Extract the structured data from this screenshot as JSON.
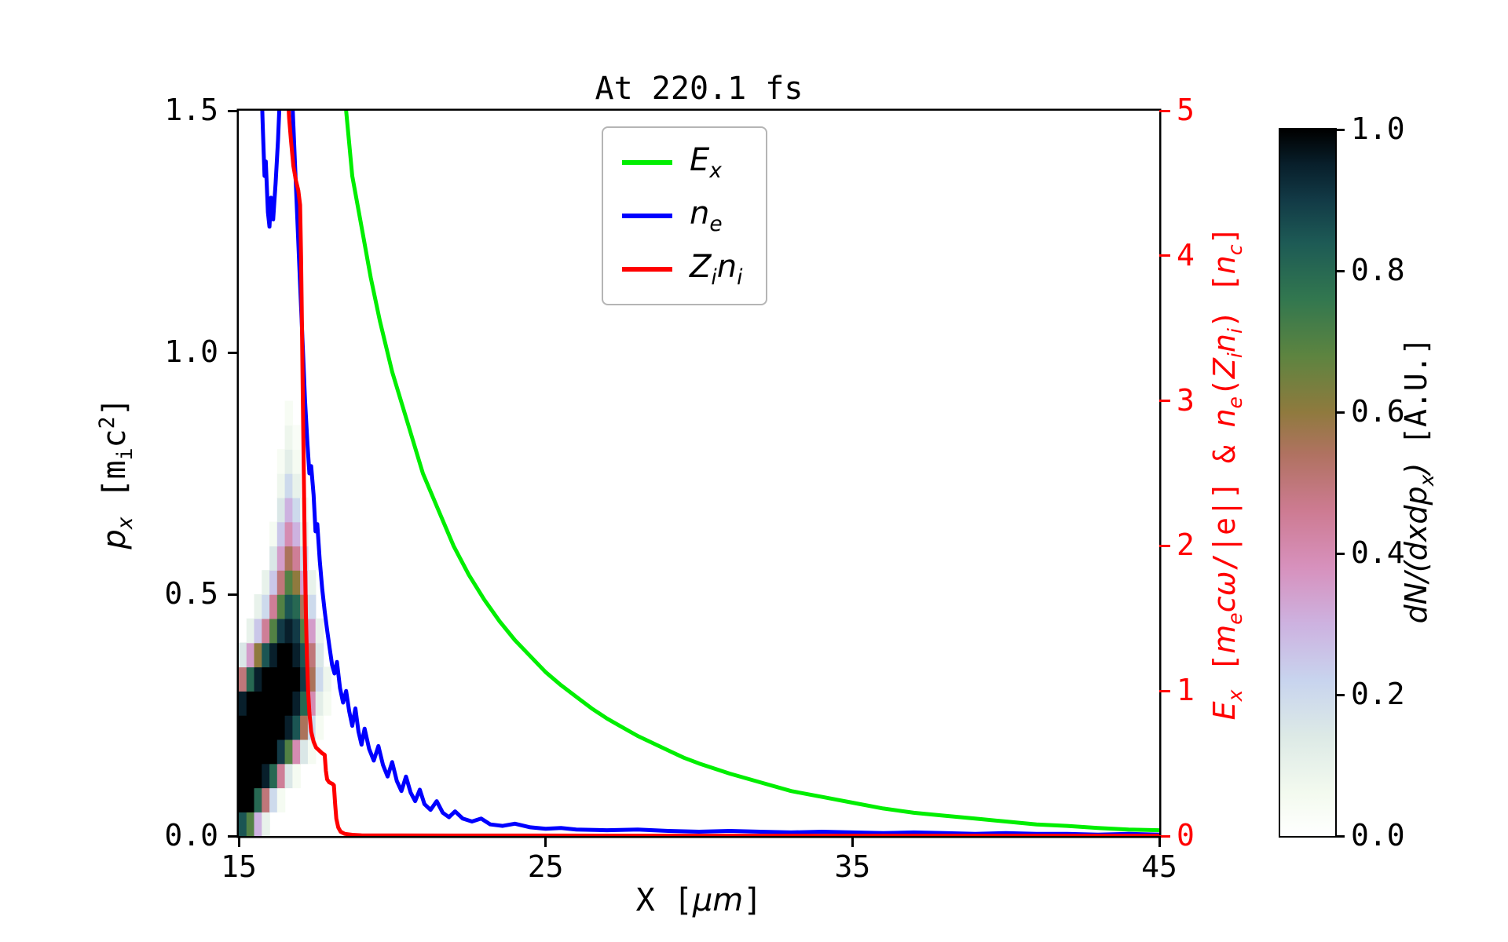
{
  "chart_data": {
    "type": "line+heatmap",
    "title": "At 220.1 fs",
    "xlabel_html": "X [<i>μm</i>]",
    "x_range": [
      15,
      45
    ],
    "x_tick_values": [
      15,
      25,
      35,
      45
    ],
    "x_tick_labels": [
      "15",
      "25",
      "35",
      "45"
    ],
    "left_axis": {
      "label_html": "<i>p<sub>x</sub></i> [m<sub>i</sub>c<sup>2</sup>]",
      "range": [
        0.0,
        1.5
      ],
      "tick_values": [
        0.0,
        0.5,
        1.0,
        1.5
      ],
      "tick_labels": [
        "0.0",
        "0.5",
        "1.0",
        "1.5"
      ],
      "color": "#000000"
    },
    "right_axis": {
      "label_html": "<i>E<sub>x</sub></i> [<i>m<sub>e</sub>cω</i>/|e|] &amp; <i>n<sub>e</sub></i>(<i>Z<sub>i</sub>n<sub>i</sub></i>) [<i>n<sub>c</sub></i>]",
      "range": [
        0,
        5
      ],
      "tick_values": [
        0,
        1,
        2,
        3,
        4,
        5
      ],
      "tick_labels": [
        "0",
        "1",
        "2",
        "3",
        "4",
        "5"
      ],
      "color": "#ff0000"
    },
    "series": [
      {
        "name": "E_x",
        "label_html": "<i>E<sub>x</sub></i>",
        "color": "#00ee00",
        "axis": "right",
        "points": [
          [
            18.35,
            5.6
          ],
          [
            18.5,
            5.0
          ],
          [
            18.7,
            4.55
          ],
          [
            19.0,
            4.2
          ],
          [
            19.3,
            3.85
          ],
          [
            19.6,
            3.55
          ],
          [
            20.0,
            3.2
          ],
          [
            20.5,
            2.85
          ],
          [
            21.0,
            2.5
          ],
          [
            21.5,
            2.25
          ],
          [
            22.0,
            2.0
          ],
          [
            22.5,
            1.8
          ],
          [
            23.0,
            1.63
          ],
          [
            23.5,
            1.48
          ],
          [
            24.0,
            1.35
          ],
          [
            24.5,
            1.24
          ],
          [
            25.0,
            1.13
          ],
          [
            25.5,
            1.04
          ],
          [
            26.0,
            0.96
          ],
          [
            26.5,
            0.88
          ],
          [
            27.0,
            0.81
          ],
          [
            27.5,
            0.75
          ],
          [
            28.0,
            0.69
          ],
          [
            28.5,
            0.64
          ],
          [
            29.0,
            0.59
          ],
          [
            29.5,
            0.54
          ],
          [
            30.0,
            0.5
          ],
          [
            31.0,
            0.43
          ],
          [
            32.0,
            0.37
          ],
          [
            33.0,
            0.31
          ],
          [
            34.0,
            0.27
          ],
          [
            35.0,
            0.23
          ],
          [
            36.0,
            0.19
          ],
          [
            37.0,
            0.16
          ],
          [
            38.0,
            0.14
          ],
          [
            39.0,
            0.12
          ],
          [
            40.0,
            0.1
          ],
          [
            41.0,
            0.08
          ],
          [
            42.0,
            0.07
          ],
          [
            43.0,
            0.055
          ],
          [
            44.0,
            0.045
          ],
          [
            45.0,
            0.04
          ]
        ]
      },
      {
        "name": "n_e",
        "label_html": "<i>n<sub>e</sub></i>",
        "color": "#0000ff",
        "axis": "right",
        "points": [
          [
            15.68,
            5.6
          ],
          [
            15.78,
            4.9
          ],
          [
            15.84,
            4.55
          ],
          [
            15.88,
            4.65
          ],
          [
            15.95,
            4.3
          ],
          [
            16.0,
            4.2
          ],
          [
            16.05,
            4.4
          ],
          [
            16.12,
            4.25
          ],
          [
            16.2,
            4.5
          ],
          [
            16.28,
            4.8
          ],
          [
            16.36,
            5.2
          ],
          [
            16.45,
            5.6
          ],
          [
            16.6,
            5.7
          ],
          [
            16.72,
            5.2
          ],
          [
            16.8,
            4.8
          ],
          [
            16.9,
            4.3
          ],
          [
            17.0,
            3.8
          ],
          [
            17.08,
            3.4
          ],
          [
            17.16,
            3.0
          ],
          [
            17.24,
            2.7
          ],
          [
            17.3,
            2.5
          ],
          [
            17.36,
            2.55
          ],
          [
            17.44,
            2.35
          ],
          [
            17.5,
            2.1
          ],
          [
            17.56,
            2.15
          ],
          [
            17.64,
            1.9
          ],
          [
            17.72,
            1.7
          ],
          [
            17.8,
            1.55
          ],
          [
            17.88,
            1.42
          ],
          [
            17.96,
            1.3
          ],
          [
            18.04,
            1.18
          ],
          [
            18.12,
            1.12
          ],
          [
            18.2,
            1.2
          ],
          [
            18.3,
            1.02
          ],
          [
            18.4,
            0.92
          ],
          [
            18.5,
            1.0
          ],
          [
            18.6,
            0.86
          ],
          [
            18.7,
            0.76
          ],
          [
            18.8,
            0.88
          ],
          [
            18.9,
            0.72
          ],
          [
            19.0,
            0.63
          ],
          [
            19.1,
            0.74
          ],
          [
            19.25,
            0.6
          ],
          [
            19.4,
            0.52
          ],
          [
            19.55,
            0.62
          ],
          [
            19.7,
            0.49
          ],
          [
            19.85,
            0.41
          ],
          [
            20.0,
            0.51
          ],
          [
            20.15,
            0.38
          ],
          [
            20.3,
            0.31
          ],
          [
            20.45,
            0.41
          ],
          [
            20.6,
            0.3
          ],
          [
            20.75,
            0.24
          ],
          [
            20.9,
            0.32
          ],
          [
            21.05,
            0.22
          ],
          [
            21.25,
            0.18
          ],
          [
            21.45,
            0.24
          ],
          [
            21.65,
            0.16
          ],
          [
            21.85,
            0.13
          ],
          [
            22.05,
            0.17
          ],
          [
            22.3,
            0.12
          ],
          [
            22.6,
            0.1
          ],
          [
            22.9,
            0.12
          ],
          [
            23.2,
            0.08
          ],
          [
            23.6,
            0.07
          ],
          [
            24.0,
            0.085
          ],
          [
            24.5,
            0.06
          ],
          [
            25.0,
            0.05
          ],
          [
            25.5,
            0.055
          ],
          [
            26.0,
            0.045
          ],
          [
            27.0,
            0.04
          ],
          [
            28.0,
            0.045
          ],
          [
            29.0,
            0.035
          ],
          [
            30.0,
            0.03
          ],
          [
            31.0,
            0.035
          ],
          [
            32.0,
            0.03
          ],
          [
            33.0,
            0.025
          ],
          [
            34.0,
            0.03
          ],
          [
            35.0,
            0.025
          ],
          [
            36.0,
            0.02
          ],
          [
            37.0,
            0.025
          ],
          [
            38.0,
            0.02
          ],
          [
            39.0,
            0.015
          ],
          [
            40.0,
            0.02
          ],
          [
            41.0,
            0.015
          ],
          [
            42.0,
            0.015
          ],
          [
            43.0,
            0.01
          ],
          [
            44.0,
            0.015
          ],
          [
            45.0,
            0.01
          ]
        ]
      },
      {
        "name": "Z_i n_i",
        "label_html": "<i>Z<sub>i</sub>n<sub>i</sub></i>",
        "color": "#ff0000",
        "axis": "right",
        "points": [
          [
            16.52,
            5.6
          ],
          [
            16.58,
            5.2
          ],
          [
            16.64,
            4.95
          ],
          [
            16.7,
            4.8
          ],
          [
            16.78,
            4.62
          ],
          [
            16.86,
            4.52
          ],
          [
            16.94,
            4.45
          ],
          [
            17.0,
            4.35
          ],
          [
            17.03,
            4.0
          ],
          [
            17.06,
            3.5
          ],
          [
            17.09,
            3.0
          ],
          [
            17.12,
            2.5
          ],
          [
            17.15,
            2.0
          ],
          [
            17.18,
            1.6
          ],
          [
            17.22,
            1.25
          ],
          [
            17.26,
            1.0
          ],
          [
            17.3,
            0.85
          ],
          [
            17.36,
            0.72
          ],
          [
            17.44,
            0.65
          ],
          [
            17.52,
            0.61
          ],
          [
            17.62,
            0.59
          ],
          [
            17.72,
            0.57
          ],
          [
            17.8,
            0.56
          ],
          [
            17.84,
            0.45
          ],
          [
            17.88,
            0.39
          ],
          [
            17.95,
            0.37
          ],
          [
            18.05,
            0.36
          ],
          [
            18.1,
            0.35
          ],
          [
            18.14,
            0.22
          ],
          [
            18.18,
            0.12
          ],
          [
            18.24,
            0.06
          ],
          [
            18.32,
            0.03
          ],
          [
            18.45,
            0.015
          ],
          [
            18.7,
            0.008
          ],
          [
            19.0,
            0.005
          ],
          [
            20.0,
            0.004
          ],
          [
            22.0,
            0.003
          ],
          [
            25.0,
            0.003
          ],
          [
            30.0,
            0.002
          ],
          [
            35.0,
            0.002
          ],
          [
            40.0,
            0.002
          ],
          [
            45.0,
            0.002
          ]
        ]
      }
    ],
    "heatmap": {
      "description": "electron phase-space density dN/(dxdpx), x in um vs px in mic2, values 0-1 A.U.",
      "x0": 15.0,
      "dx": 0.25,
      "p0": 0.0,
      "dp": 0.05,
      "values": [
        [
          0.85,
          0.7,
          0.3,
          0.1,
          0,
          0,
          0,
          0,
          0,
          0,
          0,
          0
        ],
        [
          1,
          1,
          0.8,
          0.5,
          0.2,
          0.05,
          0,
          0,
          0,
          0,
          0,
          0
        ],
        [
          1,
          1,
          1,
          0.95,
          0.8,
          0.45,
          0.15,
          0.05,
          0,
          0,
          0,
          0
        ],
        [
          1,
          1,
          1,
          1,
          1,
          0.9,
          0.7,
          0.4,
          0.15,
          0.05,
          0,
          0
        ],
        [
          1,
          1,
          1,
          1,
          1,
          1,
          0.95,
          0.85,
          0.55,
          0.2,
          0.05,
          0
        ],
        [
          0.95,
          1,
          1,
          1,
          1,
          1,
          1,
          0.95,
          0.8,
          0.4,
          0.12,
          0.05
        ],
        [
          0.5,
          0.8,
          0.95,
          1,
          1,
          1,
          1,
          1,
          0.9,
          0.55,
          0.2,
          0.08
        ],
        [
          0.15,
          0.35,
          0.6,
          0.85,
          0.95,
          1,
          1,
          0.95,
          0.85,
          0.5,
          0.15,
          0
        ],
        [
          0,
          0.1,
          0.25,
          0.45,
          0.7,
          0.9,
          0.95,
          0.9,
          0.7,
          0.35,
          0.1,
          0
        ],
        [
          0,
          0,
          0.1,
          0.2,
          0.45,
          0.7,
          0.85,
          0.8,
          0.55,
          0.2,
          0,
          0
        ],
        [
          0,
          0,
          0,
          0.1,
          0.25,
          0.5,
          0.7,
          0.6,
          0.35,
          0.1,
          0,
          0
        ],
        [
          0,
          0,
          0,
          0,
          0.15,
          0.35,
          0.55,
          0.45,
          0.2,
          0,
          0,
          0
        ],
        [
          0,
          0,
          0,
          0,
          0.05,
          0.25,
          0.4,
          0.3,
          0.1,
          0,
          0,
          0
        ],
        [
          0,
          0,
          0,
          0,
          0,
          0.15,
          0.3,
          0.2,
          0.05,
          0,
          0,
          0
        ],
        [
          0,
          0,
          0,
          0,
          0,
          0.08,
          0.2,
          0.1,
          0,
          0,
          0,
          0
        ],
        [
          0,
          0,
          0,
          0,
          0,
          0.04,
          0.12,
          0.05,
          0,
          0,
          0,
          0
        ],
        [
          0,
          0,
          0,
          0,
          0,
          0,
          0.08,
          0.03,
          0,
          0,
          0,
          0
        ],
        [
          0,
          0,
          0,
          0,
          0,
          0,
          0.04,
          0,
          0,
          0,
          0,
          0
        ]
      ]
    },
    "colorbar": {
      "label_html": "<i>dN/(dxdp<sub>x</sub>)</i> [A.U.]",
      "range": [
        0.0,
        1.0
      ],
      "tick_values": [
        0.0,
        0.2,
        0.4,
        0.6,
        0.8,
        1.0
      ],
      "tick_labels": [
        "0.0",
        "0.2",
        "0.4",
        "0.6",
        "0.8",
        "1.0"
      ],
      "stops": [
        [
          0.0,
          "#ffffff"
        ],
        [
          0.06,
          "#f3faef"
        ],
        [
          0.14,
          "#ddeae6"
        ],
        [
          0.22,
          "#c8d4ee"
        ],
        [
          0.3,
          "#cdb2e0"
        ],
        [
          0.38,
          "#d791bd"
        ],
        [
          0.46,
          "#cd7b92"
        ],
        [
          0.54,
          "#b07261"
        ],
        [
          0.6,
          "#8f7a3e"
        ],
        [
          0.68,
          "#5d8440"
        ],
        [
          0.76,
          "#32774f"
        ],
        [
          0.84,
          "#1d5a55"
        ],
        [
          0.9,
          "#123a46"
        ],
        [
          0.95,
          "#081f2b"
        ],
        [
          1.0,
          "#000000"
        ]
      ]
    },
    "legend_position": "upper-center-left"
  }
}
